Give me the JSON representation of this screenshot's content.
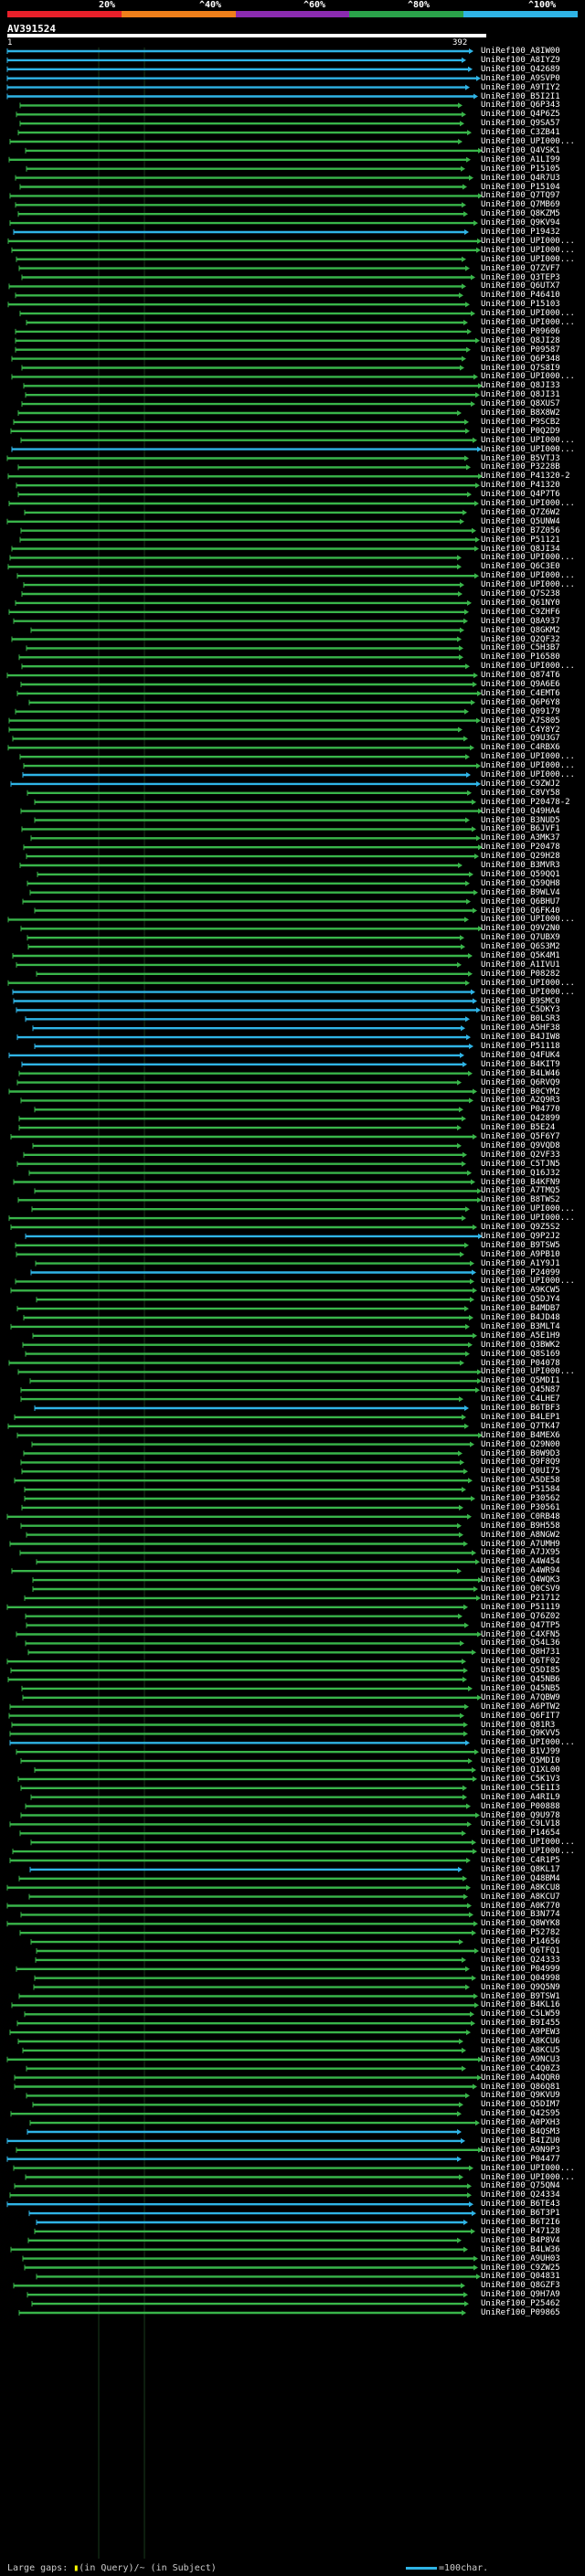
{
  "scale": {
    "labels": [
      "20%",
      "^40%",
      "^60%",
      "^80%",
      "^100%"
    ],
    "colors": [
      "#e8202a",
      "#ef7f1a",
      "#8b2bb0",
      "#2aa34a",
      "#2fb4e6"
    ]
  },
  "query": {
    "id": "AV391524",
    "start": "1",
    "end": "392"
  },
  "colors": {
    "green": "#39b54a",
    "blue": "#2fb4e6",
    "tick": "#222"
  },
  "hits": [
    "UniRef100_A8IW00",
    "UniRef100_A8IYZ9",
    "UniRef100_Q42689",
    "UniRef100_A9SVP0",
    "UniRef100_A9TIY2",
    "UniRef100_B5I2I1",
    "UniRef100_Q6P343",
    "UniRef100_Q4P6Z5",
    "UniRef100_Q9SA57",
    "UniRef100_C3ZB41",
    "UniRef100_UPI000...",
    "UniRef100_Q4VSK1",
    "UniRef100_A1LI99",
    "UniRef100_P15105",
    "UniRef100_Q4R7U3",
    "UniRef100_P15104",
    "UniRef100_Q7TQ97",
    "UniRef100_Q7MB69",
    "UniRef100_Q8KZM5",
    "UniRef100_Q9KV94",
    "UniRef100_P19432",
    "UniRef100_UPI000...",
    "UniRef100_UPI000...",
    "UniRef100_UPI000...",
    "UniRef100_Q7ZVF7",
    "UniRef100_Q3TEP3",
    "UniRef100_Q6UTX7",
    "UniRef100_P46410",
    "UniRef100_P15103",
    "UniRef100_UPI000...",
    "UniRef100_UPI000...",
    "UniRef100_P09606",
    "UniRef100_Q8JI28",
    "UniRef100_P09587",
    "UniRef100_Q6P348",
    "UniRef100_Q7S8I9",
    "UniRef100_UPI000...",
    "UniRef100_Q8JI33",
    "UniRef100_Q8JI31",
    "UniRef100_Q8XUS7",
    "UniRef100_B8X8W2",
    "UniRef100_P9SCB2",
    "UniRef100_P0Q2D9",
    "UniRef100_UPI000...",
    "UniRef100_UPI000...",
    "UniRef100_B5VTJ3",
    "UniRef100_P3228B",
    "UniRef100_P41320-2",
    "UniRef100_P41320",
    "UniRef100_Q4P7T6",
    "UniRef100_UPI000...",
    "UniRef100_Q7Z6W2",
    "UniRef100_Q5UNW4",
    "UniRef100_B7Z056",
    "UniRef100_P51121",
    "UniRef100_Q8JI34",
    "UniRef100_UPI000...",
    "UniRef100_Q6C3E0",
    "UniRef100_UPI000...",
    "UniRef100_UPI000...",
    "UniRef100_Q7S238",
    "UniRef100_Q61NY0",
    "UniRef100_C9ZHF6",
    "UniRef100_Q8A937",
    "UniRef100_Q8GKM2",
    "UniRef100_Q2QF32",
    "UniRef100_C5H3B7",
    "UniRef100_P16580",
    "UniRef100_UPI000...",
    "UniRef100_Q874T6",
    "UniRef100_Q9A6E6",
    "UniRef100_C4EMT6",
    "UniRef100_Q6P6Y8",
    "UniRef100_Q09179",
    "UniRef100_A7S805",
    "UniRef100_C4Y8Y2",
    "UniRef100_Q9U3G7",
    "UniRef100_C4RBX6",
    "UniRef100_UPI000...",
    "UniRef100_UPI000...",
    "UniRef100_UPI000...",
    "UniRef100_C9ZWJ2",
    "UniRef100_C8VY58",
    "UniRef100_P20478-2",
    "UniRef100_Q49HA4",
    "UniRef100_B3NUD5",
    "UniRef100_B6JVF1",
    "UniRef100_A3MK37",
    "UniRef100_P20478",
    "UniRef100_Q29H28",
    "UniRef100_B3MVR3",
    "UniRef100_Q59QQ1",
    "UniRef100_Q59QH8",
    "UniRef100_B9WLV4",
    "UniRef100_Q6BHU7",
    "UniRef100_Q6FK40",
    "UniRef100_UPI000...",
    "UniRef100_Q9V2N0",
    "UniRef100_Q7UBX9",
    "UniRef100_Q6S3M2",
    "UniRef100_Q5K4M1",
    "UniRef100_A1IVU1",
    "UniRef100_P08282",
    "UniRef100_UPI000...",
    "UniRef100_UPI000...",
    "UniRef100_B9SMC0",
    "UniRef100_C5DKY3",
    "UniRef100_B0LSR3",
    "UniRef100_A5HF38",
    "UniRef100_B4JIW8",
    "UniRef100_P51118",
    "UniRef100_Q4FUK4",
    "UniRef100_B4KIT9",
    "UniRef100_B4LW46",
    "UniRef100_Q6RVQ9",
    "UniRef100_B0CYM2",
    "UniRef100_A2Q9R3",
    "UniRef100_P04770",
    "UniRef100_Q42899",
    "UniRef100_B5E24",
    "UniRef100_Q5F6Y7",
    "UniRef100_Q9VQD8",
    "UniRef100_Q2VF33",
    "UniRef100_C5TJN5",
    "UniRef100_Q16J32",
    "UniRef100_B4KFN9",
    "UniRef100_A7TMQ5",
    "UniRef100_B8TWS2",
    "UniRef100_UPI000...",
    "UniRef100_UPI000...",
    "UniRef100_Q9Z5S2",
    "UniRef100_Q9P2J2",
    "UniRef100_B9TSW5",
    "UniRef100_A9PB10",
    "UniRef100_A1Y9J1",
    "UniRef100_P24099",
    "UniRef100_UPI000...",
    "UniRef100_A9KCW5",
    "UniRef100_Q5DJY4",
    "UniRef100_B4MDB7",
    "UniRef100_B4JD48",
    "UniRef100_B3MLT4",
    "UniRef100_A5E1H9",
    "UniRef100_Q3BWK2",
    "UniRef100_Q8S169",
    "UniRef100_P04078",
    "UniRef100_UPI000...",
    "UniRef100_Q5MDI1",
    "UniRef100_Q45N87",
    "UniRef100_C4LHE7",
    "UniRef100_B6TBF3",
    "UniRef100_B4LEP1",
    "UniRef100_Q7TK47",
    "UniRef100_B4MEX6",
    "UniRef100_Q29N00",
    "UniRef100_B0W9D3",
    "UniRef100_Q9F8Q9",
    "UniRef100_Q0UI75",
    "UniRef100_A5DE58",
    "UniRef100_P51584",
    "UniRef100_P30562",
    "UniRef100_P30561",
    "UniRef100_C0RB48",
    "UniRef100_B9H558",
    "UniRef100_A8NGW2",
    "UniRef100_A7UMH9",
    "UniRef100_A7JX95",
    "UniRef100_A4W454",
    "UniRef100_A4WR94",
    "UniRef100_Q4WQK3",
    "UniRef100_Q0CSV9",
    "UniRef100_P21712",
    "UniRef100_P51119",
    "UniRef100_Q76Z02",
    "UniRef100_Q47TP5",
    "UniRef100_C4XFN5",
    "UniRef100_Q54L36",
    "UniRef100_Q8H731",
    "UniRef100_Q6TF02",
    "UniRef100_Q5DI85",
    "UniRef100_Q45NB6",
    "UniRef100_Q45NB5",
    "UniRef100_A7QBW9",
    "UniRef100_A6PTW2",
    "UniRef100_Q6FIT7",
    "UniRef100_Q81R3",
    "UniRef100_Q9KVV5",
    "UniRef100_UPI000...",
    "UniRef100_B1VJ99",
    "UniRef100_Q5MDI0",
    "UniRef100_Q1XL00",
    "UniRef100_C5K1V3",
    "UniRef100_C5E1I3",
    "UniRef100_A4RIL9",
    "UniRef100_P00888",
    "UniRef100_Q9U978",
    "UniRef100_C9LV18",
    "UniRef100_P14654",
    "UniRef100_UPI000...",
    "UniRef100_UPI000...",
    "UniRef100_C4R1P5",
    "UniRef100_Q8KL17",
    "UniRef100_Q48BM4",
    "UniRef100_A8KCU8",
    "UniRef100_A8KCU7",
    "UniRef100_A0K770",
    "UniRef100_B3N774",
    "UniRef100_Q8WYK8",
    "UniRef100_P52782",
    "UniRef100_P14656",
    "UniRef100_Q6TFQ1",
    "UniRef100_Q24333",
    "UniRef100_P04999",
    "UniRef100_Q04998",
    "UniRef100_Q9Q5N9",
    "UniRef100_B9TSW1",
    "UniRef100_B4KL16",
    "UniRef100_C5LW59",
    "UniRef100_B9I455",
    "UniRef100_A9PEW3",
    "UniRef100_A8KCU6",
    "UniRef100_A8KCU5",
    "UniRef100_A9NCU3",
    "UniRef100_C4Q0Z3",
    "UniRef100_A4QQR0",
    "UniRef100_Q86Q81",
    "UniRef100_Q9KVU9",
    "UniRef100_Q5DIM7",
    "UniRef100_Q42S95",
    "UniRef100_A0PXH3",
    "UniRef100_B4QSM3",
    "UniRef100_B4IZU0",
    "UniRef100_A9N9P3",
    "UniRef100_P04477",
    "UniRef100_UPI000...",
    "UniRef100_UPI000...",
    "UniRef100_Q75QN4",
    "UniRef100_Q24334",
    "UniRef100_B6TE43",
    "UniRef100_B6T3P1",
    "UniRef100_B6T2I6",
    "UniRef100_P47128",
    "UniRef100_B4P8V4",
    "UniRef100_B4LW36",
    "UniRef100_A9UH03",
    "UniRef100_C9ZW25",
    "UniRef100_Q04831",
    "UniRef100_Q8GZF3",
    "UniRef100_Q9H7A9",
    "UniRef100_P25462",
    "UniRef100_P09865"
  ],
  "legend": {
    "gap_text": "Large gaps: ",
    "gap_mark": "▮",
    "gap_query": "(in Query)",
    "gap_sep": "/~ (in Subject)",
    "scale_text": "=100char."
  }
}
